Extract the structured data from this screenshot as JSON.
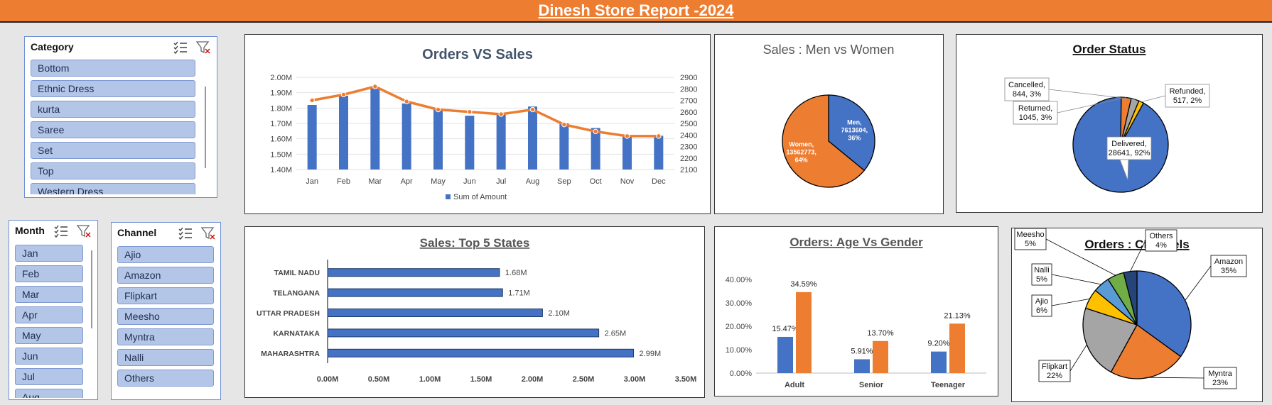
{
  "report_title": "Dinesh Store Report -2024",
  "slicers": {
    "category": {
      "header": "Category",
      "items": [
        "Bottom",
        "Ethnic Dress",
        "kurta",
        "Saree",
        "Set",
        "Top",
        "Western Dress"
      ]
    },
    "month": {
      "header": "Month",
      "items": [
        "Jan",
        "Feb",
        "Mar",
        "Apr",
        "May",
        "Jun",
        "Jul",
        "Aug"
      ]
    },
    "channel": {
      "header": "Channel",
      "items": [
        "Ajio",
        "Amazon",
        "Flipkart",
        "Meesho",
        "Myntra",
        "Nalli",
        "Others"
      ]
    }
  },
  "colors": {
    "blue": "#4472c4",
    "orange": "#ed7d31",
    "gray": "#a5a5a5",
    "yellow": "#ffc000",
    "lightblue": "#5b9bd5",
    "green": "#70ad47",
    "navy": "#264478"
  },
  "chart_data": [
    {
      "id": "orders_vs_sales",
      "type": "bar",
      "title": "Orders VS Sales",
      "categories": [
        "Jan",
        "Feb",
        "Mar",
        "Apr",
        "May",
        "Jun",
        "Jul",
        "Aug",
        "Sep",
        "Oct",
        "Nov",
        "Dec"
      ],
      "series": [
        {
          "name": "Sum of Amount",
          "type": "bar",
          "axis": "left",
          "values": [
            1.82,
            1.88,
            1.93,
            1.83,
            1.79,
            1.75,
            1.76,
            1.81,
            1.7,
            1.67,
            1.62,
            1.62
          ]
        },
        {
          "type": "line",
          "axis": "right",
          "values": [
            2700,
            2750,
            2820,
            2690,
            2620,
            2600,
            2580,
            2620,
            2490,
            2430,
            2390,
            2390
          ]
        }
      ],
      "ylim_left": [
        1.4,
        2.0
      ],
      "yticks_left": [
        "1.40M",
        "1.50M",
        "1.60M",
        "1.70M",
        "1.80M",
        "1.90M",
        "2.00M"
      ],
      "ylim_right": [
        2100,
        2900
      ],
      "yticks_right": [
        "2100",
        "2200",
        "2300",
        "2400",
        "2500",
        "2600",
        "2700",
        "2800",
        "2900"
      ],
      "legend": "bottom",
      "grid": true
    },
    {
      "id": "sales_men_women",
      "type": "pie",
      "title": "Sales : Men vs Women",
      "slices": [
        {
          "label_lines": [
            "Men,",
            "7613604,",
            "36%"
          ],
          "value": 7613604,
          "color": "#4472c4"
        },
        {
          "label_lines": [
            "Women,",
            "13562773,",
            "64%"
          ],
          "value": 13562773,
          "color": "#ed7d31"
        }
      ]
    },
    {
      "id": "order_status",
      "type": "pie",
      "title": "Order Status",
      "slices": [
        {
          "label_lines": [
            "Delivered,",
            "28641, 92%"
          ],
          "value": 28641,
          "color": "#4472c4"
        },
        {
          "label_lines": [
            "Returned,",
            "1045, 3%"
          ],
          "value": 1045,
          "color": "#ed7d31"
        },
        {
          "label_lines": [
            "Cancelled,",
            "844, 3%"
          ],
          "value": 844,
          "color": "#a5a5a5"
        },
        {
          "label_lines": [
            "Refunded,",
            "517, 2%"
          ],
          "value": 517,
          "color": "#ffc000"
        }
      ]
    },
    {
      "id": "top5_states",
      "type": "bar",
      "orientation": "horizontal",
      "title": "Sales: Top 5 States",
      "categories": [
        "TAMIL NADU",
        "TELANGANA",
        "UTTAR PRADESH",
        "KARNATAKA",
        "MAHARASHTRA"
      ],
      "values": [
        1.68,
        1.71,
        2.1,
        2.65,
        2.99
      ],
      "value_labels": [
        "1.68M",
        "1.71M",
        "2.10M",
        "2.65M",
        "2.99M"
      ],
      "xlim": [
        0,
        3.5
      ],
      "xticks": [
        "0.00M",
        "0.50M",
        "1.00M",
        "1.50M",
        "2.00M",
        "2.50M",
        "3.00M",
        "3.50M"
      ]
    },
    {
      "id": "age_vs_gender",
      "type": "bar",
      "title": "Orders: Age Vs Gender",
      "categories": [
        "Adult",
        "Senior",
        "Teenager"
      ],
      "series": [
        {
          "values": [
            15.47,
            5.91,
            9.2
          ],
          "labels": [
            "15.47%",
            "5.91%",
            "9.20%"
          ],
          "color": "#4472c4"
        },
        {
          "values": [
            34.59,
            13.7,
            21.13
          ],
          "labels": [
            "34.59%",
            "13.70%",
            "21.13%"
          ],
          "color": "#ed7d31"
        }
      ],
      "ylim": [
        0,
        40
      ],
      "yticks": [
        "0.00%",
        "10.00%",
        "20.00%",
        "30.00%",
        "40.00%"
      ]
    },
    {
      "id": "orders_channels",
      "type": "pie",
      "title": "Orders : Channels",
      "slices": [
        {
          "label_lines": [
            "Amazon",
            "35%"
          ],
          "value": 35,
          "color": "#4472c4"
        },
        {
          "label_lines": [
            "Myntra",
            "23%"
          ],
          "value": 23,
          "color": "#ed7d31"
        },
        {
          "label_lines": [
            "Flipkart",
            "22%"
          ],
          "value": 22,
          "color": "#a5a5a5"
        },
        {
          "label_lines": [
            "Ajio",
            "6%"
          ],
          "value": 6,
          "color": "#ffc000"
        },
        {
          "label_lines": [
            "Nalli",
            "5%"
          ],
          "value": 5,
          "color": "#5b9bd5"
        },
        {
          "label_lines": [
            "Meesho",
            "5%"
          ],
          "value": 5,
          "color": "#70ad47"
        },
        {
          "label_lines": [
            "Others",
            "4%"
          ],
          "value": 4,
          "color": "#264478"
        }
      ]
    }
  ]
}
